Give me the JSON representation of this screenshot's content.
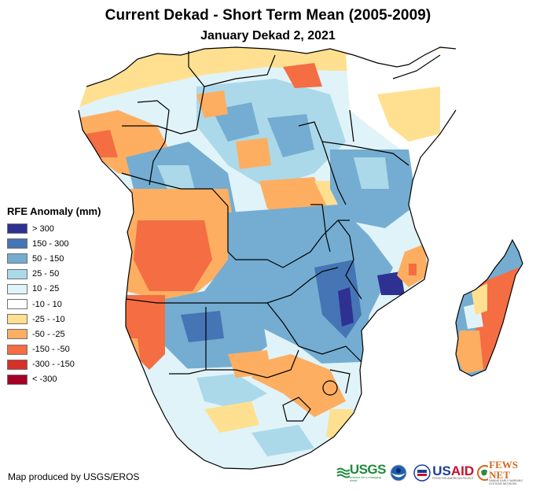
{
  "title": {
    "main": "Current Dekad - Short Term Mean (2005-2009)",
    "subtitle": "January Dekad 2, 2021"
  },
  "legend": {
    "title": "RFE Anomaly (mm)",
    "items": [
      {
        "label": "> 300",
        "color": "#2e3192"
      },
      {
        "label": "150 - 300",
        "color": "#4575b4"
      },
      {
        "label": "50 - 150",
        "color": "#74add1"
      },
      {
        "label": "25 - 50",
        "color": "#abd9e9"
      },
      {
        "label": "10 - 25",
        "color": "#e0f3f8"
      },
      {
        "label": "-10 - 10",
        "color": "#ffffff"
      },
      {
        "label": "-25 - -10",
        "color": "#fee090"
      },
      {
        "label": "-50 - -25",
        "color": "#fdae61"
      },
      {
        "label": "-150 - -50",
        "color": "#f46d43"
      },
      {
        "label": "-300 - -150",
        "color": "#d73027"
      },
      {
        "label": "< -300",
        "color": "#a50026"
      }
    ]
  },
  "credit": "Map produced by USGS/EROS",
  "logos": {
    "usgs": {
      "name": "USGS",
      "tagline": "science for a changing world"
    },
    "noaa": {
      "name": "NOAA"
    },
    "usaid": {
      "name_us": "US",
      "name_aid": "AID",
      "tagline": "FROM THE AMERICAN PEOPLE"
    },
    "fewsnet": {
      "name": "FEWS NET",
      "tagline": "FAMINE EARLY WARNING SYSTEMS NETWORK"
    }
  },
  "map": {
    "region": "Southern Africa",
    "colors": {
      "border": "#000000",
      "ocean": "#ffffff"
    }
  }
}
